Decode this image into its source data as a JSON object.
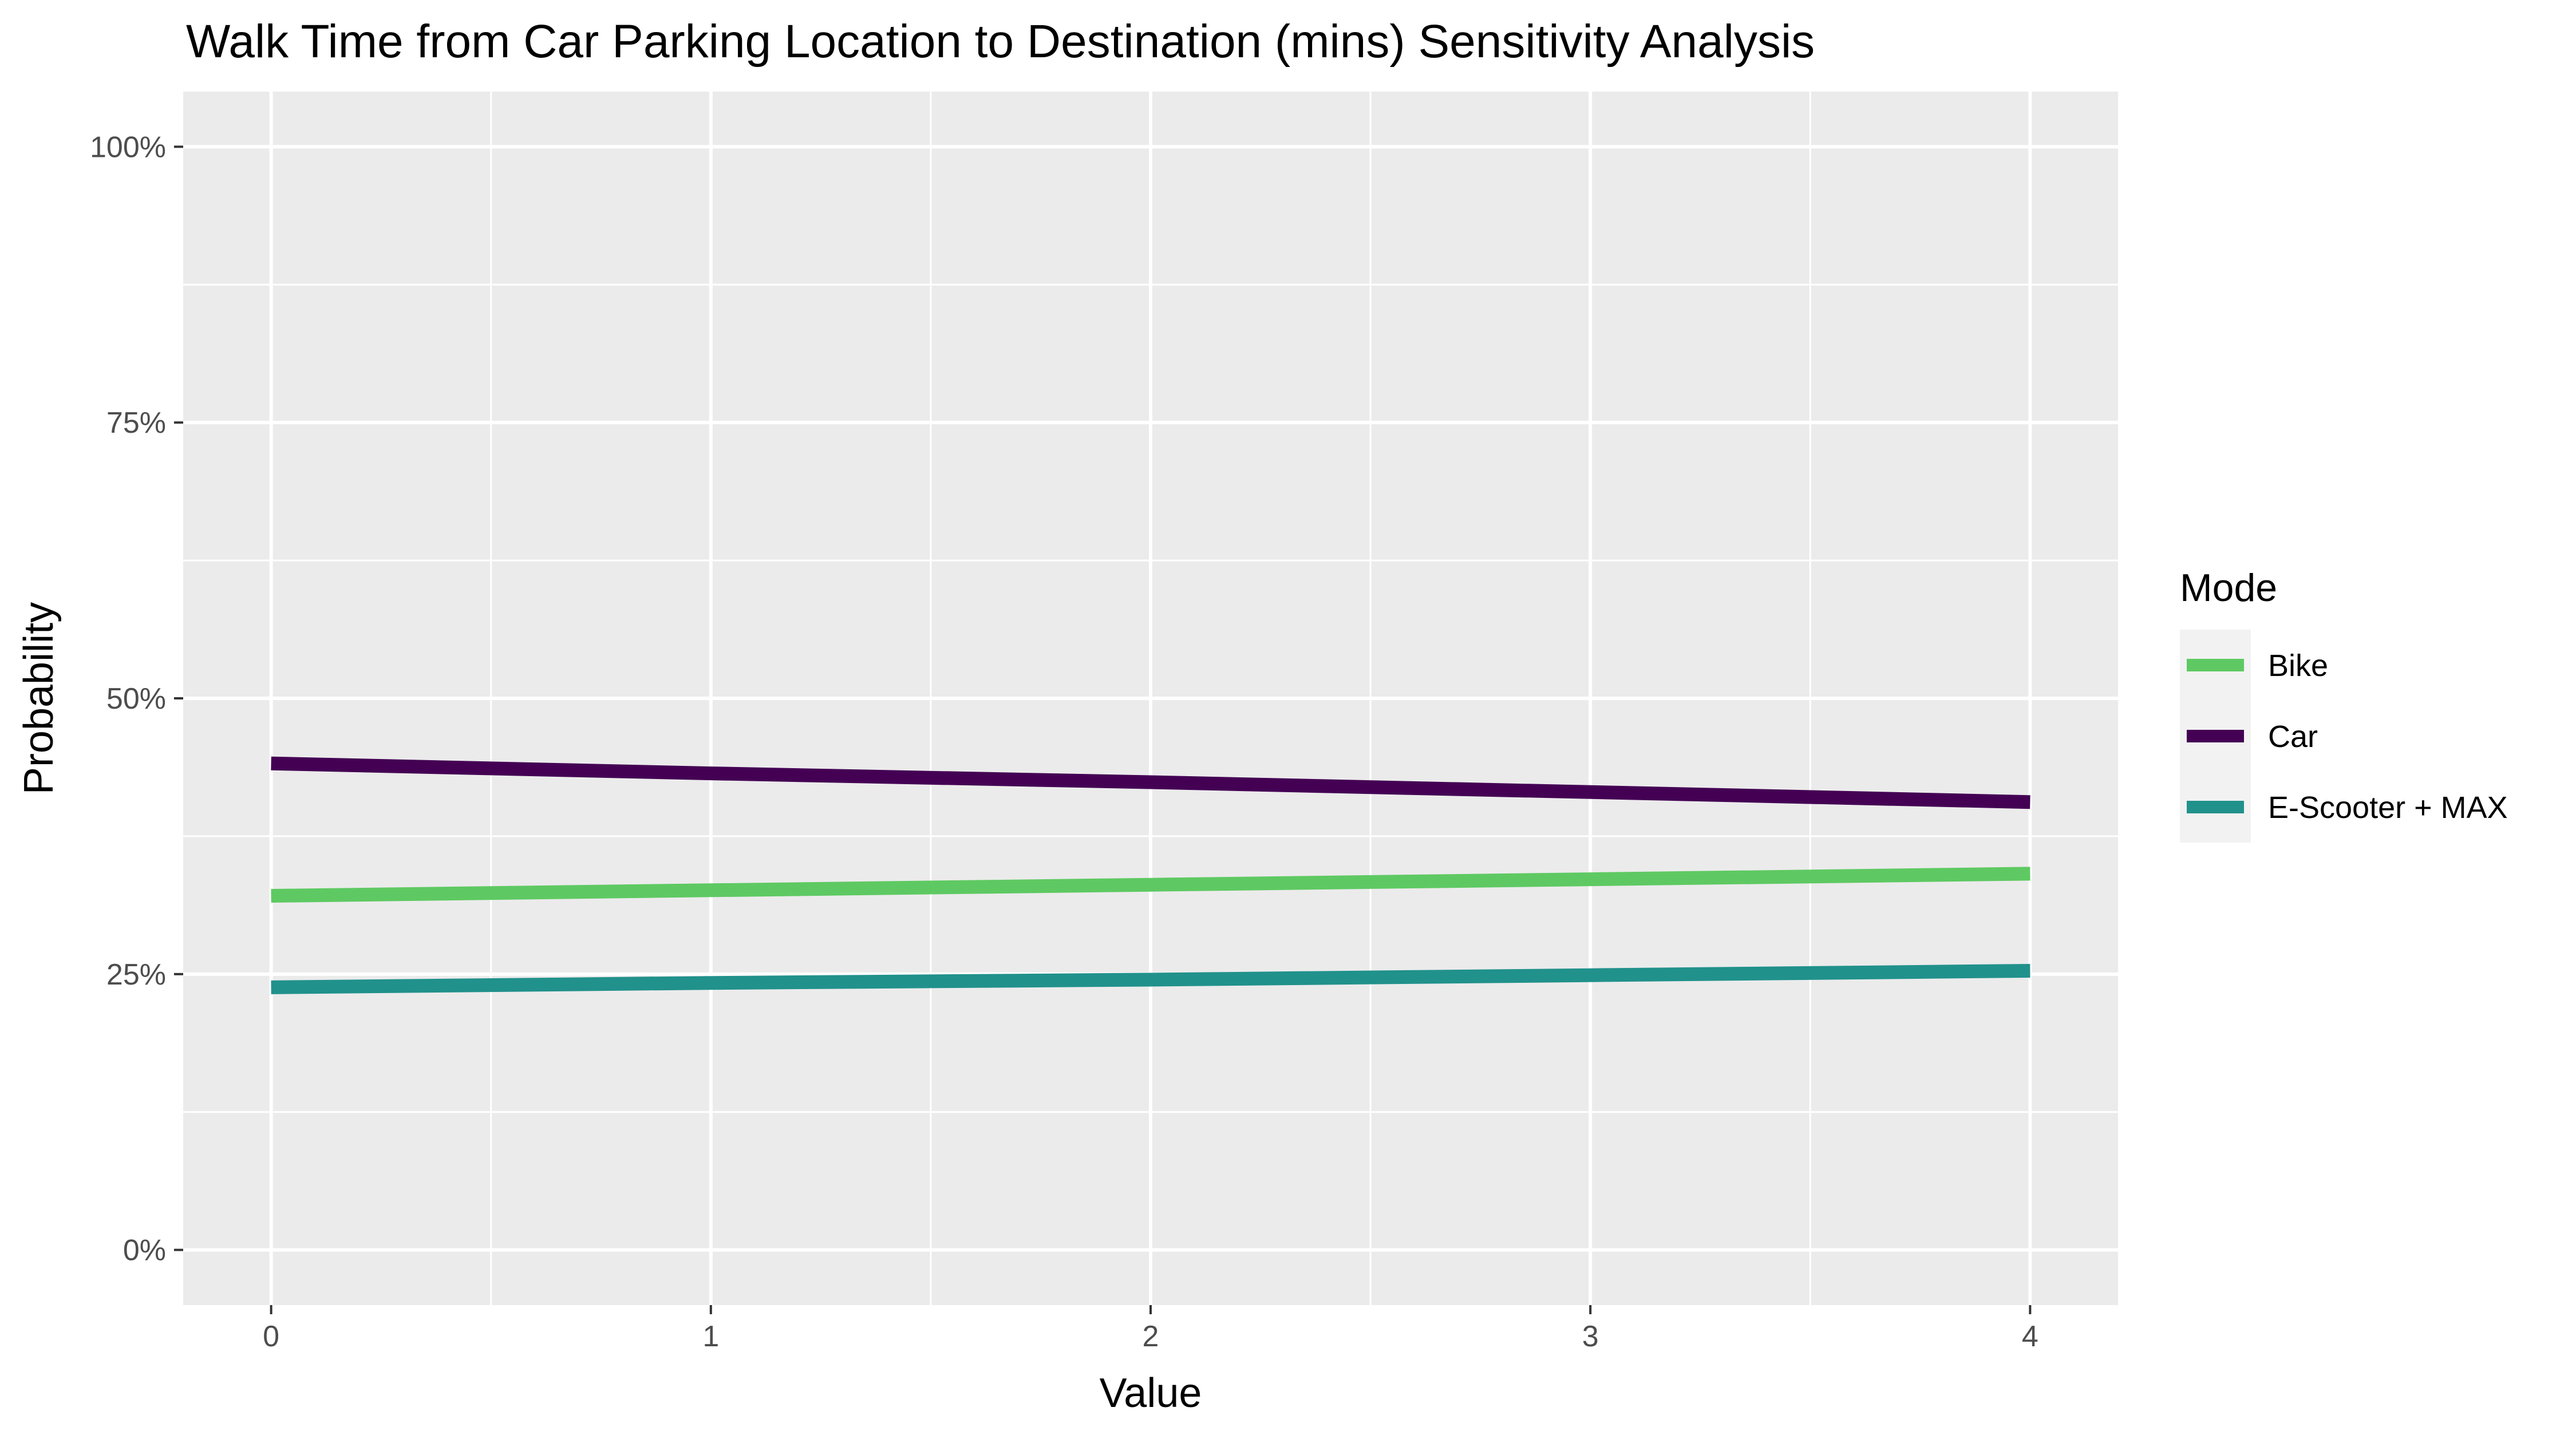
{
  "chart_data": {
    "type": "line",
    "title": "Walk Time from Car Parking Location to Destination (mins) Sensitivity Analysis",
    "xlabel": "Value",
    "ylabel": "Probability",
    "xlim": [
      -0.2,
      4.2
    ],
    "ylim": [
      -0.05,
      1.05
    ],
    "x_ticks": [
      0,
      1,
      2,
      3,
      4
    ],
    "y_ticks": [
      0,
      0.25,
      0.5,
      0.75,
      1.0
    ],
    "y_tick_labels": [
      "0%",
      "25%",
      "50%",
      "75%",
      "100%"
    ],
    "grid": true,
    "legend": {
      "title": "Mode",
      "position": "right"
    },
    "series": [
      {
        "name": "Bike",
        "color": "#5ec962",
        "x": [
          0,
          1,
          2,
          3,
          4
        ],
        "y": [
          0.321,
          0.326,
          0.331,
          0.336,
          0.341
        ]
      },
      {
        "name": "Car",
        "color": "#440154",
        "x": [
          0,
          1,
          2,
          3,
          4
        ],
        "y": [
          0.441,
          0.432,
          0.424,
          0.415,
          0.406
        ]
      },
      {
        "name": "E-Scooter + MAX",
        "color": "#21918c",
        "x": [
          0,
          1,
          2,
          3,
          4
        ],
        "y": [
          0.238,
          0.242,
          0.245,
          0.249,
          0.253
        ]
      }
    ]
  }
}
